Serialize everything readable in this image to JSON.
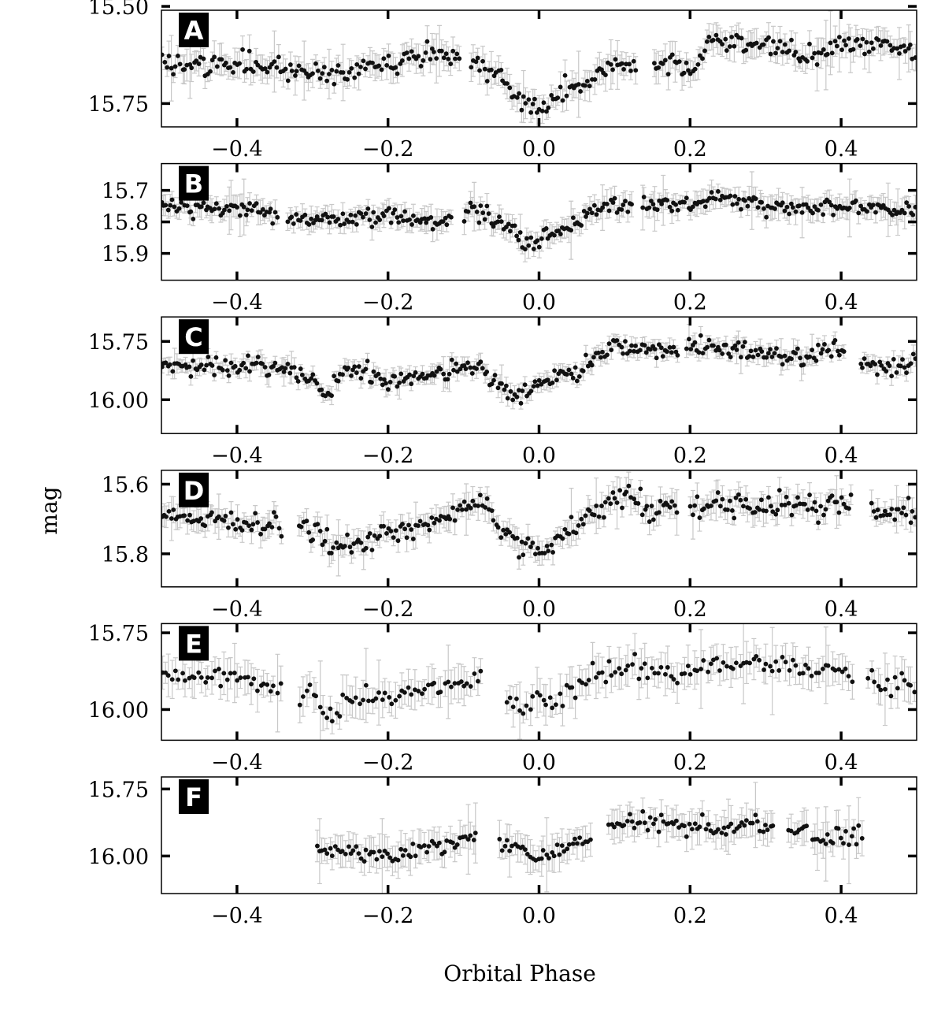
{
  "colors": {
    "points": "#111111",
    "errorbars": "#c8c8c8",
    "frame": "#000000",
    "label_box": "#000000",
    "label_text": "#ffffff"
  },
  "chart_data": {
    "type": "scatter",
    "xlabel": "Orbital Phase",
    "ylabel": "mag",
    "y_axis_inverted": true,
    "grid": false,
    "legend": "none",
    "xlim": [
      -0.5,
      0.5
    ],
    "x_ticks": [
      -0.4,
      -0.2,
      0.0,
      0.2,
      0.4
    ],
    "x_tick_labels": [
      "−0.4",
      "−0.2",
      "0.0",
      "0.2",
      "0.4"
    ],
    "panels": [
      {
        "label": "A",
        "ylim": [
          15.51,
          15.81
        ],
        "y_ticks": [
          15.5,
          15.75
        ],
        "y_tick_labels": [
          "15.50",
          "15.75"
        ],
        "typical_error": 0.03,
        "knots": [
          [
            -0.5,
            15.65
          ],
          [
            -0.35,
            15.65
          ],
          [
            -0.28,
            15.68
          ],
          [
            -0.2,
            15.64
          ],
          [
            -0.15,
            15.62
          ],
          [
            -0.11,
            15.63
          ],
          [
            -0.09,
            15.65
          ],
          [
            -0.05,
            15.68
          ],
          [
            -0.03,
            15.73
          ],
          [
            0.0,
            15.76
          ],
          [
            0.03,
            15.72
          ],
          [
            0.07,
            15.68
          ],
          [
            0.1,
            15.66
          ],
          [
            0.13,
            15.65
          ],
          [
            0.18,
            15.65
          ],
          [
            0.2,
            15.68
          ],
          [
            0.23,
            15.58
          ],
          [
            0.28,
            15.6
          ],
          [
            0.35,
            15.62
          ],
          [
            0.42,
            15.6
          ],
          [
            0.45,
            15.59
          ],
          [
            0.5,
            15.62
          ]
        ],
        "gaps": [
          [
            -0.105,
            -0.09
          ],
          [
            0.13,
            0.15
          ]
        ],
        "spread": 0.025,
        "range": [
          -0.5,
          0.5
        ],
        "n": 330
      },
      {
        "label": "B",
        "ylim": [
          15.615,
          15.985
        ],
        "y_ticks": [
          15.7,
          15.8,
          15.9
        ],
        "y_tick_labels": [
          "15.7",
          "15.8",
          "15.9"
        ],
        "typical_error": 0.03,
        "knots": [
          [
            -0.5,
            15.75
          ],
          [
            -0.36,
            15.77
          ],
          [
            -0.32,
            15.8
          ],
          [
            -0.2,
            15.78
          ],
          [
            -0.14,
            15.8
          ],
          [
            -0.1,
            15.78
          ],
          [
            -0.09,
            15.75
          ],
          [
            -0.05,
            15.8
          ],
          [
            -0.02,
            15.86
          ],
          [
            0.0,
            15.86
          ],
          [
            0.03,
            15.83
          ],
          [
            0.06,
            15.79
          ],
          [
            0.09,
            15.75
          ],
          [
            0.12,
            15.75
          ],
          [
            0.2,
            15.75
          ],
          [
            0.24,
            15.72
          ],
          [
            0.3,
            15.75
          ],
          [
            0.5,
            15.76
          ]
        ],
        "gaps": [
          [
            -0.345,
            -0.335
          ],
          [
            -0.115,
            -0.1
          ],
          [
            0.125,
            0.135
          ]
        ],
        "spread": 0.025,
        "range": [
          -0.5,
          0.5
        ],
        "n": 360
      },
      {
        "label": "C",
        "ylim": [
          15.645,
          16.145
        ],
        "y_ticks": [
          15.75,
          16.0
        ],
        "y_tick_labels": [
          "15.75",
          "16.00"
        ],
        "typical_error": 0.03,
        "knots": [
          [
            -0.5,
            15.85
          ],
          [
            -0.35,
            15.86
          ],
          [
            -0.3,
            15.92
          ],
          [
            -0.28,
            15.98
          ],
          [
            -0.26,
            15.87
          ],
          [
            -0.2,
            15.93
          ],
          [
            -0.15,
            15.9
          ],
          [
            -0.08,
            15.85
          ],
          [
            -0.05,
            15.95
          ],
          [
            -0.03,
            15.98
          ],
          [
            0.0,
            15.93
          ],
          [
            0.05,
            15.88
          ],
          [
            0.08,
            15.8
          ],
          [
            0.1,
            15.77
          ],
          [
            0.18,
            15.79
          ],
          [
            0.2,
            15.77
          ],
          [
            0.3,
            15.8
          ],
          [
            0.35,
            15.82
          ],
          [
            0.39,
            15.78
          ],
          [
            0.42,
            15.85
          ],
          [
            0.5,
            15.85
          ]
        ],
        "gaps": [
          [
            0.185,
            0.195
          ],
          [
            0.405,
            0.425
          ]
        ],
        "spread": 0.035,
        "range": [
          -0.5,
          0.5
        ],
        "n": 360
      },
      {
        "label": "D",
        "ylim": [
          15.56,
          15.895
        ],
        "y_ticks": [
          15.6,
          15.8
        ],
        "y_tick_labels": [
          "15.6",
          "15.8"
        ],
        "typical_error": 0.03,
        "knots": [
          [
            -0.5,
            15.69
          ],
          [
            -0.35,
            15.72
          ],
          [
            -0.32,
            15.72
          ],
          [
            -0.3,
            15.72
          ],
          [
            -0.27,
            15.78
          ],
          [
            -0.22,
            15.76
          ],
          [
            -0.15,
            15.72
          ],
          [
            -0.08,
            15.64
          ],
          [
            -0.05,
            15.72
          ],
          [
            -0.02,
            15.78
          ],
          [
            0.0,
            15.8
          ],
          [
            0.03,
            15.75
          ],
          [
            0.07,
            15.68
          ],
          [
            0.11,
            15.62
          ],
          [
            0.15,
            15.68
          ],
          [
            0.18,
            15.66
          ],
          [
            0.3,
            15.66
          ],
          [
            0.42,
            15.66
          ],
          [
            0.45,
            15.68
          ],
          [
            0.5,
            15.7
          ]
        ],
        "gaps": [
          [
            -0.34,
            -0.32
          ],
          [
            0.185,
            0.2
          ],
          [
            0.415,
            0.44
          ]
        ],
        "spread": 0.03,
        "range": [
          -0.5,
          0.5
        ],
        "n": 330
      },
      {
        "label": "E",
        "ylim": [
          15.72,
          16.1
        ],
        "y_ticks": [
          15.75,
          16.0
        ],
        "y_tick_labels": [
          "15.75",
          "16.00"
        ],
        "typical_error": 0.05,
        "knots": [
          [
            -0.5,
            15.88
          ],
          [
            -0.4,
            15.9
          ],
          [
            -0.35,
            15.93
          ],
          [
            -0.3,
            15.95
          ],
          [
            -0.28,
            16.02
          ],
          [
            -0.24,
            15.96
          ],
          [
            -0.18,
            15.95
          ],
          [
            -0.12,
            15.9
          ],
          [
            -0.05,
            15.89
          ],
          [
            -0.04,
            15.98
          ],
          [
            0.0,
            15.98
          ],
          [
            0.03,
            15.95
          ],
          [
            0.07,
            15.9
          ],
          [
            0.1,
            15.86
          ],
          [
            0.16,
            15.88
          ],
          [
            0.22,
            15.87
          ],
          [
            0.27,
            15.85
          ],
          [
            0.34,
            15.86
          ],
          [
            0.38,
            15.89
          ],
          [
            0.41,
            15.88
          ],
          [
            0.45,
            15.92
          ],
          [
            0.5,
            15.92
          ]
        ],
        "gaps": [
          [
            -0.34,
            -0.32
          ],
          [
            -0.075,
            -0.045
          ],
          [
            0.415,
            0.435
          ]
        ],
        "spread": 0.035,
        "range": [
          -0.5,
          0.5
        ],
        "n": 230
      },
      {
        "label": "F",
        "ylim": [
          15.705,
          16.14
        ],
        "y_ticks": [
          15.75,
          16.0
        ],
        "y_tick_labels": [
          "15.75",
          "16.00"
        ],
        "typical_error": 0.05,
        "knots": [
          [
            -0.29,
            15.98
          ],
          [
            -0.2,
            16.0
          ],
          [
            -0.13,
            15.97
          ],
          [
            -0.08,
            15.92
          ],
          [
            -0.05,
            15.95
          ],
          [
            -0.02,
            15.98
          ],
          [
            0.0,
            16.0
          ],
          [
            0.03,
            15.97
          ],
          [
            0.065,
            15.94
          ],
          [
            0.09,
            15.88
          ],
          [
            0.15,
            15.87
          ],
          [
            0.2,
            15.89
          ],
          [
            0.25,
            15.9
          ],
          [
            0.28,
            15.86
          ],
          [
            0.31,
            15.9
          ],
          [
            0.35,
            15.89
          ],
          [
            0.37,
            15.96
          ],
          [
            0.4,
            15.93
          ],
          [
            0.43,
            15.91
          ]
        ],
        "gaps": [
          [
            -0.08,
            -0.055
          ],
          [
            0.07,
            0.09
          ],
          [
            0.31,
            0.33
          ],
          [
            0.355,
            0.36
          ]
        ],
        "spread": 0.03,
        "range": [
          -0.295,
          0.43
        ],
        "n": 210
      }
    ]
  }
}
